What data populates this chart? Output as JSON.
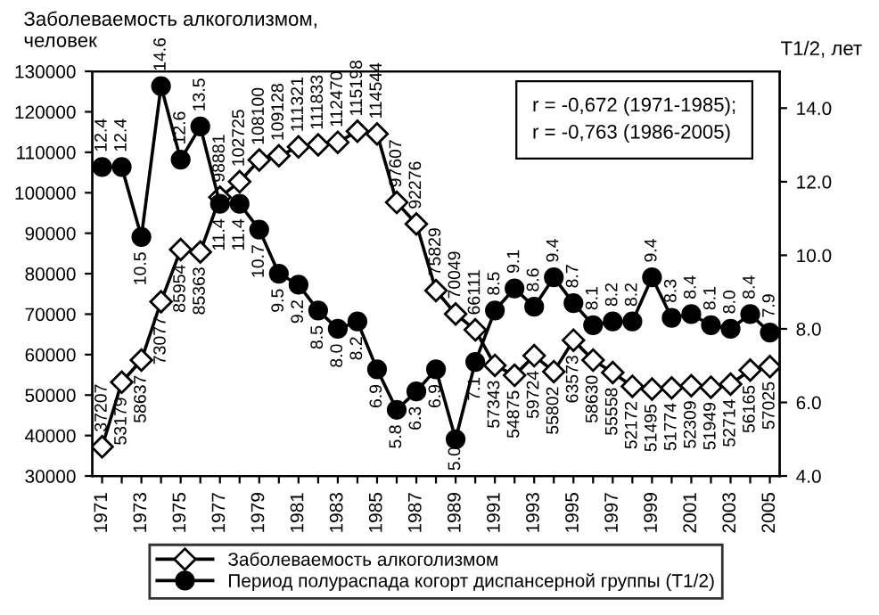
{
  "chart_data": {
    "type": "line",
    "ylabel": "Заболеваемость алкоголизмом,\nчеловек",
    "y2label": "T1/2, лет",
    "categories": [
      "1971",
      null,
      "1973",
      null,
      "1975",
      null,
      "1977",
      null,
      "1979",
      null,
      "1981",
      null,
      "1983",
      null,
      "1985",
      null,
      "1987",
      null,
      "1989",
      null,
      "1991",
      null,
      "1993",
      null,
      "1995",
      null,
      "1997",
      null,
      "1999",
      null,
      "2001",
      null,
      "2003",
      null,
      "2005"
    ],
    "series": [
      {
        "name": "Заболеваемость алкоголизмом",
        "color": "#000000",
        "marker": "diamond",
        "values": [
          37207,
          53179,
          58637,
          73077,
          85954,
          85363,
          98881,
          102725,
          108100,
          109128,
          111321,
          111833,
          112470,
          115198,
          114544,
          97607,
          92276,
          75829,
          70049,
          66111,
          57343,
          54875,
          59724,
          55802,
          63573,
          58630,
          55558,
          52172,
          51495,
          51774,
          52309,
          51949,
          52714,
          56165,
          57025
        ]
      },
      {
        "name": "Период полураспада когорт диспансерной группы (T1/2)",
        "color": "#000000",
        "marker": "circle",
        "axis": "y2",
        "values": [
          12.4,
          12.4,
          10.5,
          14.6,
          12.6,
          13.5,
          11.4,
          11.4,
          10.7,
          9.5,
          9.2,
          8.5,
          8.0,
          8.2,
          6.9,
          5.8,
          6.3,
          6.9,
          5.0,
          7.1,
          8.5,
          9.1,
          8.6,
          9.4,
          8.7,
          8.1,
          8.2,
          8.2,
          9.4,
          8.3,
          8.4,
          8.1,
          8.0,
          8.4,
          7.9
        ],
        "value_labels": [
          "12.4",
          "12.4",
          "10.5",
          "14.6",
          "12.6",
          "13.5",
          "11.4",
          "11.4",
          "10.7",
          "9.5",
          "9.2",
          "8.5",
          "8.0",
          "8.2",
          "6.9",
          "5.8",
          "6.3",
          "6.9",
          "5.0",
          "7.1",
          "8.5",
          "9.1",
          "8.6",
          "9.4",
          "8.7",
          "8.1",
          "8.2",
          "8.2",
          "9.4",
          "8.3",
          "8.4",
          "8.1",
          "8.0",
          "8.4",
          "7.9"
        ]
      }
    ],
    "ylim": [
      30000,
      130000
    ],
    "yticks": [
      30000,
      40000,
      50000,
      60000,
      70000,
      80000,
      90000,
      100000,
      110000,
      120000,
      130000
    ],
    "y2lim": [
      4,
      15
    ],
    "y2ticks": [
      {
        "value": 4,
        "label": "4.0"
      },
      {
        "value": 6,
        "label": "6.0"
      },
      {
        "value": 8,
        "label": "8.0"
      },
      {
        "value": 10,
        "label": "10.0"
      },
      {
        "value": 12,
        "label": "12.0"
      },
      {
        "value": 14,
        "label": "14.0"
      }
    ],
    "annotations": [
      "r = -0,672 (1971-1985);\nr = -0,763 (1986-2005)"
    ],
    "data_labels": true,
    "legend": "bottom",
    "grid": false
  }
}
